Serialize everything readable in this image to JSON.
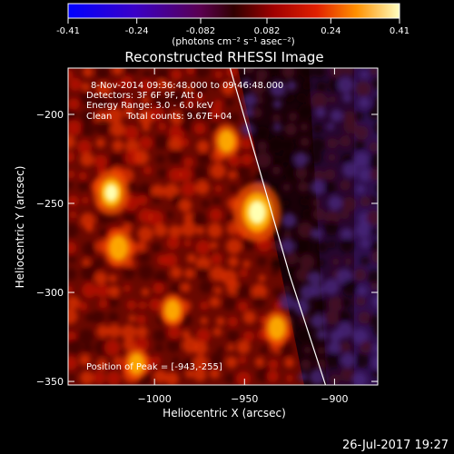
{
  "colorbar": {
    "ticks": [
      "-0.41",
      "-0.24",
      "-0.082",
      "0.082",
      "0.24",
      "0.41"
    ],
    "tick_values": [
      -0.41,
      -0.24,
      -0.082,
      0.082,
      0.24,
      0.41
    ],
    "range": [
      -0.41,
      0.41
    ],
    "units_label": "(photons cm⁻² s⁻¹ asec⁻²)"
  },
  "title": "Reconstructed RHESSI Image",
  "info": {
    "line1": "8-Nov-2014 09:36:48.000 to 09:46:48.000",
    "line2": "Detectors: 3F 6F 9F, Att 0",
    "line3": "Energy Range: 3.0 - 6.0 keV",
    "line4": "Clean     Total counts: 9.67E+04"
  },
  "peak_label": "Position of Peak = [-943,-255]",
  "footer_date": "26-Jul-2017 19:27",
  "chart_data": {
    "type": "heatmap",
    "title": "Reconstructed RHESSI Image",
    "xlabel": "Heliocentric X (arcsec)",
    "ylabel": "Heliocentric Y (arcsec)",
    "xlim": [
      -1048,
      -876
    ],
    "ylim": [
      -352,
      -174
    ],
    "x_ticks": [
      -1000,
      -950,
      -900
    ],
    "y_ticks": [
      -200,
      -250,
      -300,
      -350
    ],
    "x_tick_labels": [
      "−1000",
      "−950",
      "−900"
    ],
    "y_tick_labels": [
      "−200",
      "−250",
      "−300",
      "−350"
    ],
    "peak": {
      "x": -943,
      "y": -255
    },
    "sources": [
      {
        "x": -943,
        "y": -255,
        "value": 0.41
      },
      {
        "x": -1024,
        "y": -244,
        "value": 0.26
      },
      {
        "x": -1020,
        "y": -275,
        "value": 0.18
      },
      {
        "x": -932,
        "y": -320,
        "value": 0.15
      },
      {
        "x": -990,
        "y": -310,
        "value": 0.12
      },
      {
        "x": -1010,
        "y": -340,
        "value": 0.12
      },
      {
        "x": -960,
        "y": -215,
        "value": 0.14
      }
    ],
    "limb_curve": [
      {
        "x": -958,
        "y": -174
      },
      {
        "x": -942,
        "y": -230
      },
      {
        "x": -925,
        "y": -290
      },
      {
        "x": -905,
        "y": -352
      }
    ]
  }
}
